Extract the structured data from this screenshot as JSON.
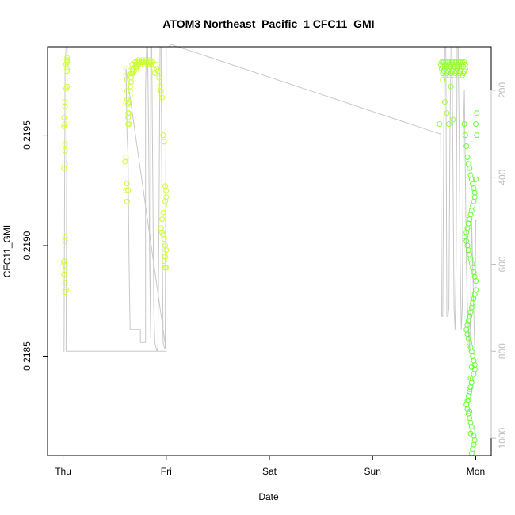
{
  "chart_data": {
    "type": "scatter",
    "title": "ATOM3 Northeast_Pacific_1 CFC11_GMI",
    "xlabel": "Date",
    "ylabel": "CFC11_GMI",
    "x_tick_labels": [
      "Thu",
      "Fri",
      "Sat",
      "Sun",
      "Mon"
    ],
    "x_ticks": [
      0,
      1,
      2,
      3,
      4
    ],
    "xlim": [
      -0.15,
      4.15
    ],
    "y_ticks": [
      0.2185,
      0.219,
      0.2195
    ],
    "y_tick_labels": [
      "0.2185",
      "0.2190",
      "0.2195"
    ],
    "ylim": [
      0.21805,
      0.2199
    ],
    "right_axis": {
      "label": "",
      "ticks": [
        200,
        400,
        600,
        800,
        1000
      ],
      "tick_labels": [
        "200",
        "400",
        "600",
        "800",
        "1000"
      ],
      "range_top_to_bottom": [
        100,
        1040
      ],
      "color": "#bfbfbf"
    },
    "grid": false,
    "legend": "none",
    "colors": {
      "points_high": "#ccff33",
      "points_mid": "#99ff33",
      "points_low": "#66ff33",
      "pressure_line": "#c8c8c8"
    },
    "pressure_line": [
      [
        0.0,
        800
      ],
      [
        0.01,
        800
      ],
      [
        0.02,
        150
      ],
      [
        0.03,
        100
      ],
      [
        0.04,
        100
      ],
      [
        0.03,
        800
      ],
      [
        0.95,
        800
      ],
      [
        1.0,
        800
      ],
      [
        0.61,
        150
      ],
      [
        0.62,
        300
      ],
      [
        0.63,
        350
      ],
      [
        0.64,
        600
      ],
      [
        0.65,
        750
      ],
      [
        0.75,
        750
      ],
      [
        0.75,
        780
      ],
      [
        0.8,
        780
      ],
      [
        0.8,
        200
      ],
      [
        0.81,
        100
      ],
      [
        0.82,
        100
      ],
      [
        0.83,
        300
      ],
      [
        0.84,
        600
      ],
      [
        0.85,
        770
      ],
      [
        0.85,
        100
      ],
      [
        0.86,
        100
      ],
      [
        0.87,
        400
      ],
      [
        0.88,
        700
      ],
      [
        0.89,
        780
      ],
      [
        0.9,
        790
      ],
      [
        0.91,
        800
      ],
      [
        0.92,
        790
      ],
      [
        0.93,
        500
      ],
      [
        0.94,
        100
      ],
      [
        0.95,
        100
      ],
      [
        0.96,
        500
      ],
      [
        0.97,
        780
      ],
      [
        0.98,
        790
      ],
      [
        0.99,
        795
      ],
      [
        1.0,
        100
      ],
      [
        1.02,
        100
      ],
      [
        1.05,
        95
      ],
      [
        3.65,
        300
      ],
      [
        3.66,
        300
      ],
      [
        3.67,
        720
      ],
      [
        3.68,
        720
      ],
      [
        3.69,
        300
      ],
      [
        3.7,
        100
      ],
      [
        3.71,
        100
      ],
      [
        3.72,
        720
      ],
      [
        3.73,
        720
      ],
      [
        3.74,
        700
      ],
      [
        3.75,
        300
      ],
      [
        3.76,
        100
      ],
      [
        3.77,
        100
      ],
      [
        3.78,
        400
      ],
      [
        3.79,
        700
      ],
      [
        3.8,
        750
      ],
      [
        3.81,
        600
      ],
      [
        3.82,
        100
      ],
      [
        3.83,
        100
      ],
      [
        3.84,
        300
      ],
      [
        3.85,
        600
      ],
      [
        3.86,
        750
      ],
      [
        3.87,
        700
      ],
      [
        3.88,
        300
      ],
      [
        3.89,
        200
      ],
      [
        3.9,
        400
      ],
      [
        3.91,
        600
      ],
      [
        3.92,
        700
      ],
      [
        3.93,
        750
      ],
      [
        3.94,
        800
      ],
      [
        3.95,
        700
      ],
      [
        3.96,
        500
      ],
      [
        3.97,
        600
      ],
      [
        3.98,
        700
      ],
      [
        3.99,
        800
      ],
      [
        4.0,
        500
      ],
      [
        4.01,
        500
      ]
    ],
    "series": [
      {
        "x": [
          0.01,
          0.01,
          0.02,
          0.02,
          0.01,
          0.02,
          0.03,
          0.02,
          0.02,
          0.02,
          0.01,
          0.02,
          0.02,
          0.02,
          0.01,
          0.02,
          0.01,
          0.02,
          0.02,
          0.03,
          0.04,
          0.04,
          0.04,
          0.03,
          0.04,
          0.04,
          0.04
        ],
        "y": [
          0.21893,
          0.21892,
          0.21891,
          0.21889,
          0.21887,
          0.21883,
          0.2188,
          0.21879,
          0.21902,
          0.21904,
          0.21935,
          0.21937,
          0.21943,
          0.21946,
          0.21954,
          0.21955,
          0.21958,
          0.21963,
          0.21965,
          0.21971,
          0.21972,
          0.21979,
          0.2198,
          0.21982,
          0.21983,
          0.21984,
          0.21985
        ]
      },
      {
        "x": [
          0.61,
          0.61,
          0.62,
          0.62,
          0.62,
          0.63,
          0.63,
          0.63,
          0.64,
          0.64,
          0.64,
          0.65,
          0.65,
          0.65,
          0.66,
          0.66,
          0.66,
          0.67,
          0.67,
          0.67,
          0.68,
          0.68,
          0.69,
          0.69,
          0.7,
          0.7,
          0.71,
          0.71,
          0.72,
          0.72,
          0.73,
          0.73,
          0.74,
          0.75,
          0.76,
          0.77,
          0.78,
          0.79,
          0.8,
          0.8,
          0.81,
          0.82,
          0.83,
          0.84,
          0.85,
          0.86,
          0.87,
          0.88,
          0.89,
          0.9,
          0.91,
          0.92,
          0.93,
          0.94,
          0.95,
          0.96,
          0.97,
          0.98,
          0.99,
          1.0,
          1.0,
          0.99,
          0.98,
          0.97,
          0.96,
          0.95,
          0.96,
          0.97,
          0.98,
          0.99,
          1.0,
          0.99,
          0.98,
          0.99,
          1.0,
          0.61,
          0.6,
          0.62,
          0.63,
          0.61,
          0.62,
          0.63
        ],
        "y": [
          0.2198,
          0.21977,
          0.21975,
          0.2197,
          0.21966,
          0.21964,
          0.2196,
          0.21958,
          0.21955,
          0.2196,
          0.21965,
          0.21968,
          0.2197,
          0.21972,
          0.21974,
          0.21976,
          0.21978,
          0.21978,
          0.2198,
          0.21982,
          0.2198,
          0.21978,
          0.21979,
          0.21982,
          0.21981,
          0.21983,
          0.21982,
          0.2198,
          0.21981,
          0.21983,
          0.21982,
          0.21984,
          0.21983,
          0.21982,
          0.21983,
          0.21984,
          0.21983,
          0.21982,
          0.21983,
          0.21984,
          0.21983,
          0.21982,
          0.21983,
          0.21984,
          0.21983,
          0.21982,
          0.21983,
          0.2198,
          0.21978,
          0.21982,
          0.2198,
          0.21979,
          0.21976,
          0.21972,
          0.2197,
          0.21967,
          0.2195,
          0.21947,
          0.21927,
          0.21925,
          0.21922,
          0.2192,
          0.21918,
          0.21915,
          0.21912,
          0.21908,
          0.21906,
          0.21905,
          0.21903,
          0.219,
          0.21898,
          0.21895,
          0.21893,
          0.2189,
          0.2189,
          0.2194,
          0.21938,
          0.21928,
          0.21925,
          0.21925,
          0.2192,
          0.21955
        ]
      },
      {
        "x": [
          3.66,
          3.67,
          3.67,
          3.68,
          3.68,
          3.69,
          3.69,
          3.7,
          3.7,
          3.71,
          3.71,
          3.72,
          3.72,
          3.73,
          3.73,
          3.74,
          3.74,
          3.75,
          3.75,
          3.76,
          3.76,
          3.77,
          3.77,
          3.78,
          3.78,
          3.79,
          3.79,
          3.8,
          3.8,
          3.81,
          3.81,
          3.82,
          3.82,
          3.83,
          3.83,
          3.84,
          3.84,
          3.85,
          3.85,
          3.86,
          3.86,
          3.87,
          3.87,
          3.88,
          3.88,
          3.89,
          3.89,
          3.9,
          3.9,
          3.65,
          3.68,
          3.7,
          3.72,
          3.74,
          3.76,
          3.78
        ],
        "y": [
          0.21982,
          0.2198,
          0.21983,
          0.21981,
          0.21978,
          0.21983,
          0.21979,
          0.21982,
          0.2198,
          0.21977,
          0.21983,
          0.21981,
          0.21978,
          0.21983,
          0.21979,
          0.21982,
          0.2198,
          0.21977,
          0.21983,
          0.21981,
          0.21978,
          0.21983,
          0.21979,
          0.21982,
          0.2198,
          0.21977,
          0.21983,
          0.21981,
          0.21978,
          0.21983,
          0.21979,
          0.21982,
          0.2198,
          0.21977,
          0.21983,
          0.21981,
          0.21978,
          0.21983,
          0.21979,
          0.21982,
          0.2198,
          0.21977,
          0.21983,
          0.21981,
          0.21978,
          0.21983,
          0.21979,
          0.21982,
          0.2198,
          0.21955,
          0.21975,
          0.21965,
          0.2196,
          0.21955,
          0.21972,
          0.21957
        ]
      },
      {
        "x": [
          3.89,
          3.9,
          3.91,
          3.92,
          3.93,
          3.94,
          3.95,
          3.96,
          3.97,
          3.98,
          3.99,
          3.99,
          3.98,
          3.97,
          3.96,
          3.95,
          3.94,
          3.93,
          3.92,
          3.91,
          3.9,
          3.91,
          3.92,
          3.93,
          3.94,
          3.95,
          3.96,
          3.97,
          3.98,
          3.99,
          4.0,
          4.0,
          3.99,
          3.98,
          3.97,
          3.96,
          3.95,
          3.94,
          3.93,
          3.92,
          3.91,
          3.92,
          3.93,
          3.94,
          3.95,
          3.96,
          3.97,
          3.98,
          3.99,
          3.99,
          3.98,
          3.97,
          3.96,
          3.95,
          3.94,
          3.93,
          3.92,
          3.91,
          3.92,
          3.93,
          3.94,
          3.95,
          3.96,
          3.97,
          3.98,
          3.99,
          3.98,
          3.97,
          3.96,
          3.95,
          3.94,
          3.93,
          3.94,
          3.95,
          3.96,
          4.0,
          4.01,
          4.01,
          4.0
        ],
        "y": [
          0.21955,
          0.2195,
          0.21945,
          0.2194,
          0.21937,
          0.21935,
          0.21932,
          0.2193,
          0.21928,
          0.21926,
          0.21924,
          0.21922,
          0.2192,
          0.21918,
          0.21916,
          0.21914,
          0.21912,
          0.2191,
          0.21908,
          0.21906,
          0.21904,
          0.21902,
          0.219,
          0.21898,
          0.21896,
          0.21894,
          0.21892,
          0.2189,
          0.21888,
          0.21886,
          0.21884,
          0.2188,
          0.21878,
          0.21876,
          0.21874,
          0.21872,
          0.2187,
          0.21868,
          0.21866,
          0.21864,
          0.21862,
          0.2186,
          0.21858,
          0.21856,
          0.21854,
          0.21852,
          0.2185,
          0.21848,
          0.21846,
          0.21844,
          0.21842,
          0.2184,
          0.21838,
          0.21836,
          0.21834,
          0.21832,
          0.2183,
          0.21828,
          0.21826,
          0.21824,
          0.21822,
          0.2182,
          0.21818,
          0.21816,
          0.21814,
          0.21812,
          0.2181,
          0.21808,
          0.21806,
          0.21815,
          0.21825,
          0.2183,
          0.21835,
          0.2184,
          0.21845,
          0.21955,
          0.2196,
          0.2195,
          0.2193
        ]
      }
    ]
  }
}
